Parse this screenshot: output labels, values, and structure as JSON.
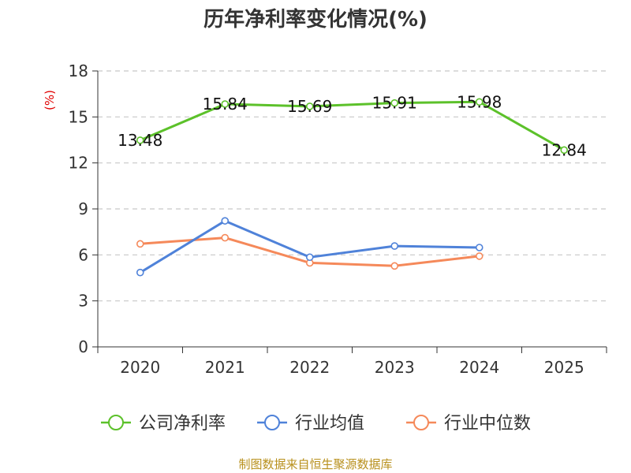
{
  "chart_data": {
    "type": "line",
    "title": "历年净利率变化情况(%)",
    "unit_label": "(%)",
    "categories": [
      "2020",
      "2021",
      "2022",
      "2023",
      "2024",
      "2025"
    ],
    "ylim": [
      0,
      18
    ],
    "yticks": [
      0,
      3,
      6,
      9,
      12,
      15,
      18
    ],
    "grid": true,
    "legend_position": "bottom",
    "series": [
      {
        "name": "公司净利率",
        "color": "#5cc12a",
        "values": [
          13.48,
          15.84,
          15.69,
          15.91,
          15.98,
          12.84
        ],
        "labels": [
          "13.48",
          "15.84",
          "15.69",
          "15.91",
          "15.98",
          "12.84"
        ]
      },
      {
        "name": "行业均值",
        "color": "#4f82d9",
        "values": [
          4.85,
          8.22,
          5.85,
          6.58,
          6.48,
          null
        ]
      },
      {
        "name": "行业中位数",
        "color": "#f5895a",
        "values": [
          6.72,
          7.12,
          5.48,
          5.28,
          5.92,
          null
        ]
      }
    ],
    "source": "制图数据来自恒生聚源数据库"
  }
}
